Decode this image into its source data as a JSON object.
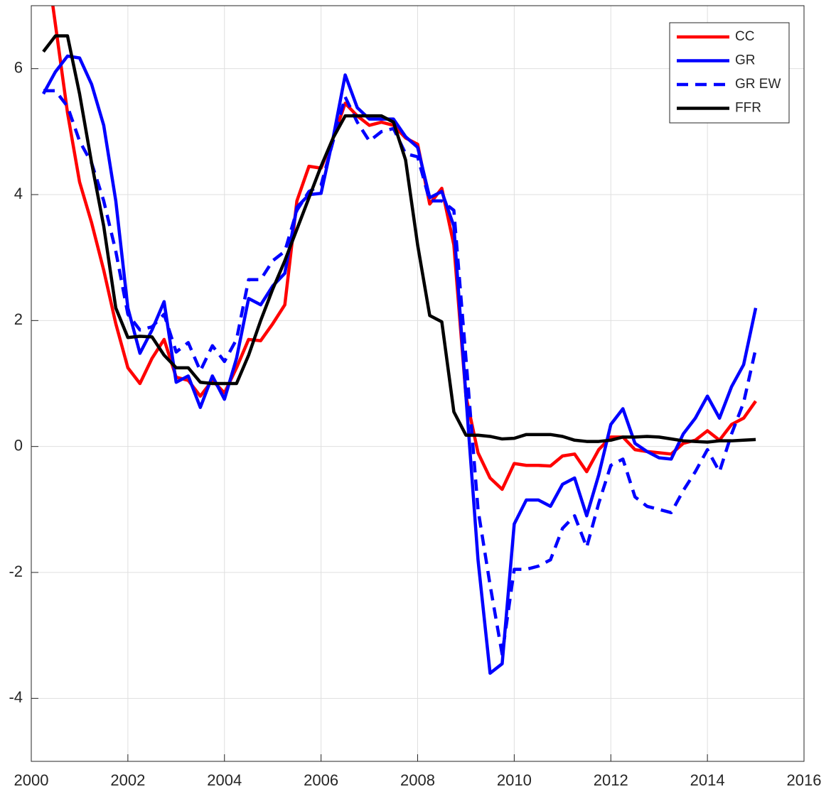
{
  "chart_data": {
    "type": "line",
    "x": [
      2000.25,
      2000.5,
      2000.75,
      2001,
      2001.25,
      2001.5,
      2001.75,
      2002,
      2002.25,
      2002.5,
      2002.75,
      2003,
      2003.25,
      2003.5,
      2003.75,
      2004,
      2004.25,
      2004.5,
      2004.75,
      2005,
      2005.25,
      2005.5,
      2005.75,
      2006,
      2006.25,
      2006.5,
      2006.75,
      2007,
      2007.25,
      2007.5,
      2007.75,
      2008,
      2008.25,
      2008.5,
      2008.75,
      2009,
      2009.25,
      2009.5,
      2009.75,
      2010,
      2010.25,
      2010.5,
      2010.75,
      2011,
      2011.25,
      2011.5,
      2011.75,
      2012,
      2012.25,
      2012.5,
      2012.75,
      2013,
      2013.25,
      2013.5,
      2013.75,
      2014,
      2014.25,
      2014.5,
      2014.75,
      2015
    ],
    "series": [
      {
        "name": "CC",
        "color": "#ff0000",
        "dash": false,
        "values": [
          8.1,
          6.7,
          5.3,
          4.2,
          3.55,
          2.8,
          1.95,
          1.25,
          1.0,
          1.4,
          1.7,
          1.1,
          1.05,
          0.8,
          1.05,
          0.85,
          1.25,
          1.7,
          1.68,
          1.95,
          2.25,
          3.9,
          4.45,
          4.42,
          4.9,
          5.45,
          5.25,
          5.1,
          5.15,
          5.1,
          4.9,
          4.8,
          3.85,
          4.1,
          3.2,
          0.8,
          -0.1,
          -0.5,
          -0.68,
          -0.27,
          -0.3,
          -0.3,
          -0.31,
          -0.15,
          -0.12,
          -0.4,
          -0.05,
          0.15,
          0.15,
          -0.05,
          -0.08,
          -0.1,
          -0.12,
          0.05,
          0.1,
          0.25,
          0.1,
          0.35,
          0.45,
          0.72
        ]
      },
      {
        "name": "GR",
        "color": "#0000ff",
        "dash": false,
        "values": [
          5.6,
          5.95,
          6.2,
          6.17,
          5.75,
          5.1,
          3.9,
          2.2,
          1.48,
          1.85,
          2.3,
          1.02,
          1.12,
          0.62,
          1.12,
          0.75,
          1.4,
          2.35,
          2.25,
          2.55,
          2.75,
          3.8,
          4.0,
          4.02,
          4.9,
          5.9,
          5.38,
          5.2,
          5.2,
          5.2,
          4.92,
          4.75,
          3.95,
          4.05,
          3.5,
          0.8,
          -1.8,
          -3.6,
          -3.45,
          -1.23,
          -0.85,
          -0.85,
          -0.95,
          -0.6,
          -0.5,
          -1.1,
          -0.45,
          0.35,
          0.6,
          0.05,
          -0.08,
          -0.18,
          -0.2,
          0.2,
          0.45,
          0.8,
          0.45,
          0.95,
          1.3,
          2.2
        ]
      },
      {
        "name": "GR EW",
        "color": "#0000ff",
        "dash": true,
        "values": [
          5.65,
          5.65,
          5.4,
          4.85,
          4.5,
          3.9,
          3.1,
          2.1,
          1.85,
          1.9,
          2.1,
          1.5,
          1.65,
          1.2,
          1.6,
          1.35,
          1.7,
          2.65,
          2.65,
          2.95,
          3.1,
          3.75,
          4.05,
          4.15,
          4.85,
          5.55,
          5.15,
          4.85,
          5.0,
          5.05,
          4.65,
          4.6,
          3.9,
          3.9,
          3.75,
          1.4,
          -1.0,
          -2.2,
          -3.3,
          -1.95,
          -1.95,
          -1.9,
          -1.8,
          -1.3,
          -1.1,
          -1.6,
          -0.9,
          -0.3,
          -0.2,
          -0.8,
          -0.95,
          -1.0,
          -1.05,
          -0.7,
          -0.4,
          -0.05,
          -0.4,
          0.2,
          0.7,
          1.55
        ]
      },
      {
        "name": "FFR",
        "color": "#000000",
        "dash": false,
        "values": [
          6.27,
          6.52,
          6.52,
          5.6,
          4.5,
          3.5,
          2.2,
          1.73,
          1.75,
          1.74,
          1.45,
          1.25,
          1.25,
          1.02,
          1.0,
          1.0,
          1.0,
          1.45,
          2.0,
          2.5,
          2.95,
          3.45,
          3.95,
          4.45,
          4.9,
          5.25,
          5.25,
          5.25,
          5.25,
          5.15,
          4.55,
          3.2,
          2.08,
          1.98,
          0.55,
          0.18,
          0.18,
          0.16,
          0.12,
          0.13,
          0.19,
          0.19,
          0.19,
          0.16,
          0.1,
          0.08,
          0.08,
          0.1,
          0.15,
          0.15,
          0.16,
          0.15,
          0.12,
          0.09,
          0.08,
          0.07,
          0.09,
          0.09,
          0.1,
          0.11
        ]
      }
    ],
    "xlim": [
      2000,
      2016
    ],
    "xticks": [
      2000,
      2002,
      2004,
      2006,
      2008,
      2010,
      2012,
      2014,
      2016
    ],
    "ylim": [
      -5,
      7
    ],
    "yticks": [
      -4,
      -2,
      0,
      2,
      4,
      6
    ],
    "grid": true,
    "legend": "northeast"
  }
}
